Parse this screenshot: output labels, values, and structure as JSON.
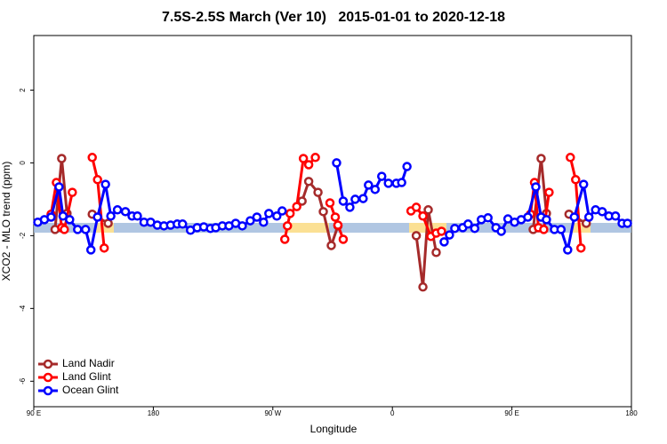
{
  "chart_data": {
    "type": "line",
    "title": "7.5S-2.5S March (Ver 10)   2015-01-01 to 2020-12-18",
    "x_label": "Longitude",
    "y_label": "XCO2 - MLO trend (ppm)",
    "xlim": [
      90,
      540
    ],
    "ylim": [
      -6.7,
      3.5
    ],
    "xticks": [
      {
        "value": 90,
        "label": "90 E"
      },
      180,
      {
        "value": 270,
        "label": "90 W"
      },
      {
        "value": 360,
        "label": "0"
      },
      {
        "value": 450,
        "label": "90 E"
      },
      {
        "value": 540,
        "label": "180"
      }
    ],
    "yticks": [
      -6,
      -4,
      -2,
      0,
      2
    ],
    "legend": "bottom-left",
    "series": [
      {
        "name": "Land Nadir",
        "color": "#a52a2a",
        "x": [
          106,
          111,
          115,
          124,
          134,
          146,
          200,
          292,
          297,
          304,
          308,
          314,
          319,
          350,
          378,
          383,
          387,
          393,
          430,
          466,
          472,
          476,
          485,
          493,
          506
        ],
        "values": [
          -1.83,
          0.12,
          -1.39,
          null,
          -1.41,
          -1.66,
          null,
          -1.05,
          -0.51,
          -0.81,
          -1.34,
          -2.27,
          -1.73,
          null,
          -2.0,
          -3.41,
          -1.29,
          -2.46,
          null,
          -1.83,
          0.12,
          -1.39,
          null,
          -1.41,
          -1.66
        ]
      },
      {
        "name": "Land Glint",
        "color": "#ff0000",
        "x": [
          103,
          107,
          111,
          113,
          119,
          126,
          134,
          138,
          143,
          200,
          279,
          281,
          283,
          288,
          293,
          297,
          302,
          308,
          313,
          317,
          319,
          323,
          350,
          374,
          378,
          383,
          389,
          393,
          397,
          430,
          464,
          467,
          470,
          474,
          478,
          486,
          494,
          498,
          502
        ],
        "values": [
          -1.41,
          -0.54,
          -1.78,
          -1.83,
          -0.81,
          null,
          0.15,
          -0.46,
          -2.34,
          null,
          -2.1,
          -1.73,
          -1.39,
          -1.2,
          0.12,
          -0.05,
          0.15,
          null,
          -1.1,
          -1.49,
          -1.71,
          -2.1,
          null,
          -1.32,
          -1.22,
          -1.46,
          -2.02,
          -1.93,
          -1.88,
          null,
          -1.41,
          -0.54,
          -1.78,
          -1.83,
          -0.81,
          null,
          0.15,
          -0.46,
          -2.34
        ]
      },
      {
        "name": "Ocean Glint",
        "color": "#0000ff",
        "x": [
          93,
          98,
          103,
          109,
          112,
          117,
          123,
          129,
          133,
          138,
          144,
          148,
          153,
          159,
          164,
          168,
          173,
          178,
          183,
          188,
          193,
          198,
          202,
          208,
          213,
          218,
          223,
          227,
          232,
          237,
          242,
          247,
          253,
          258,
          263,
          267,
          273,
          277,
          300,
          318,
          323,
          328,
          332,
          338,
          342,
          347,
          352,
          357,
          363,
          367,
          371,
          385,
          399,
          403,
          407,
          413,
          417,
          422,
          427,
          432,
          438,
          442,
          447,
          452,
          457,
          462,
          468,
          472,
          476,
          482,
          487,
          492,
          497,
          504,
          508,
          513,
          518,
          523,
          528,
          533,
          537
        ],
        "values": [
          -1.63,
          -1.56,
          -1.49,
          -0.66,
          -1.46,
          -1.56,
          -1.83,
          -1.83,
          -2.39,
          -1.49,
          -0.59,
          -1.46,
          -1.29,
          -1.34,
          -1.46,
          -1.46,
          -1.63,
          -1.63,
          -1.71,
          -1.73,
          -1.71,
          -1.68,
          -1.68,
          -1.85,
          -1.78,
          -1.76,
          -1.8,
          -1.78,
          -1.73,
          -1.73,
          -1.66,
          -1.73,
          -1.59,
          -1.49,
          -1.63,
          -1.39,
          -1.46,
          -1.32,
          null,
          0.0,
          -1.05,
          -1.22,
          -1.0,
          -0.98,
          -0.61,
          -0.73,
          -0.37,
          -0.56,
          -0.56,
          -0.54,
          -0.1,
          null,
          -2.17,
          -1.98,
          -1.8,
          -1.78,
          -1.68,
          -1.8,
          -1.56,
          -1.51,
          -1.78,
          -1.88,
          -1.54,
          -1.63,
          -1.56,
          -1.49,
          -0.66,
          -1.49,
          -1.56,
          -1.83,
          -1.83,
          -2.39,
          -1.49,
          -0.59,
          -1.49,
          -1.29,
          -1.34,
          -1.46,
          -1.46,
          -1.66,
          -1.66
        ]
      }
    ]
  }
}
